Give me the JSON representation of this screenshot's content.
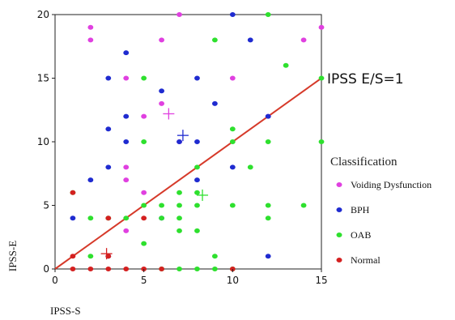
{
  "chart_data": {
    "type": "scatter",
    "xlabel": "IPSS-S",
    "ylabel": "IPSS-E",
    "xlim": [
      0,
      15
    ],
    "ylim": [
      0,
      20
    ],
    "x_ticks": [
      "0",
      "5",
      "10",
      "15"
    ],
    "y_ticks": [
      "0",
      "5",
      "10",
      "15",
      "20"
    ],
    "grid": false,
    "legend_title": "Classification",
    "legend_position": "right",
    "reference_line": {
      "label": "IPSS E/S=1",
      "from": [
        0,
        0
      ],
      "to": [
        15,
        15
      ],
      "color": "#d63a2a"
    },
    "series": [
      {
        "name": "Voiding Dysfunction",
        "color": "#e040e0",
        "points": [
          [
            2,
            19
          ],
          [
            2,
            18
          ],
          [
            4,
            15
          ],
          [
            4,
            8
          ],
          [
            4,
            7
          ],
          [
            4,
            3
          ],
          [
            5,
            12
          ],
          [
            5,
            6
          ],
          [
            6,
            18
          ],
          [
            6,
            13
          ],
          [
            7,
            20
          ],
          [
            7,
            10
          ],
          [
            10,
            15
          ],
          [
            12,
            12
          ],
          [
            14,
            18
          ],
          [
            15,
            19
          ]
        ],
        "mean": [
          6.4,
          12.2
        ]
      },
      {
        "name": "BPH",
        "color": "#1f2bd0",
        "points": [
          [
            1,
            4
          ],
          [
            2,
            7
          ],
          [
            3,
            15
          ],
          [
            3,
            11
          ],
          [
            3,
            8
          ],
          [
            3,
            1
          ],
          [
            4,
            17
          ],
          [
            4,
            12
          ],
          [
            4,
            10
          ],
          [
            6,
            14
          ],
          [
            6,
            4
          ],
          [
            7,
            10
          ],
          [
            8,
            15
          ],
          [
            8,
            10
          ],
          [
            8,
            7
          ],
          [
            9,
            13
          ],
          [
            10,
            20
          ],
          [
            10,
            8
          ],
          [
            11,
            18
          ],
          [
            12,
            12
          ],
          [
            12,
            1
          ]
        ],
        "mean": [
          7.2,
          10.5
        ]
      },
      {
        "name": "OAB",
        "color": "#2ee02e",
        "points": [
          [
            1,
            6
          ],
          [
            2,
            4
          ],
          [
            2,
            1
          ],
          [
            3,
            4
          ],
          [
            4,
            4
          ],
          [
            5,
            15
          ],
          [
            5,
            10
          ],
          [
            5,
            2
          ],
          [
            5,
            5
          ],
          [
            6,
            5
          ],
          [
            6,
            4
          ],
          [
            6,
            0
          ],
          [
            7,
            6
          ],
          [
            7,
            5
          ],
          [
            7,
            4
          ],
          [
            7,
            3
          ],
          [
            7,
            0
          ],
          [
            8,
            8
          ],
          [
            8,
            6
          ],
          [
            8,
            5
          ],
          [
            8,
            3
          ],
          [
            8,
            0
          ],
          [
            9,
            18
          ],
          [
            9,
            1
          ],
          [
            9,
            0
          ],
          [
            10,
            11
          ],
          [
            10,
            10
          ],
          [
            10,
            5
          ],
          [
            10,
            0
          ],
          [
            11,
            8
          ],
          [
            12,
            20
          ],
          [
            12,
            10
          ],
          [
            12,
            5
          ],
          [
            12,
            4
          ],
          [
            13,
            16
          ],
          [
            14,
            5
          ],
          [
            15,
            15
          ],
          [
            15,
            10
          ]
        ],
        "mean": [
          8.3,
          5.8
        ]
      },
      {
        "name": "Normal",
        "color": "#d42020",
        "points": [
          [
            1,
            6
          ],
          [
            1,
            1
          ],
          [
            1,
            0
          ],
          [
            2,
            0
          ],
          [
            3,
            4
          ],
          [
            3,
            1
          ],
          [
            3,
            0
          ],
          [
            4,
            0
          ],
          [
            5,
            4
          ],
          [
            5,
            0
          ],
          [
            6,
            0
          ],
          [
            10,
            0
          ]
        ],
        "mean": [
          2.9,
          1.2
        ]
      }
    ]
  }
}
